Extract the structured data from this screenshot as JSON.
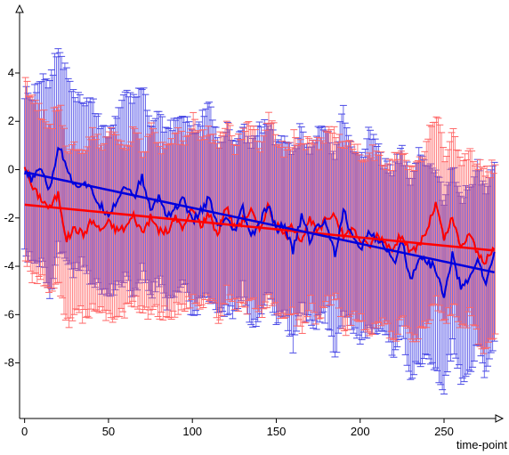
{
  "chart_data": {
    "type": "line",
    "title": "",
    "xlabel": "time-point",
    "ylabel": "",
    "xlim": [
      -3,
      285
    ],
    "ylim": [
      -10.3,
      6.8
    ],
    "grid": false,
    "legend": "none",
    "x_ticks": [
      0,
      50,
      100,
      150,
      200,
      250
    ],
    "x_tick_labels": [
      "0",
      "50",
      "100",
      "150",
      "200",
      "250"
    ],
    "y_ticks": [
      4,
      2,
      0,
      -2,
      -4,
      -6,
      -8
    ],
    "y_tick_labels": [
      "4",
      "2",
      "0",
      "-2",
      "-4",
      "-6",
      "-8"
    ],
    "colors": {
      "series_a": "#ff0000",
      "series_b": "#0000dd",
      "series_a_bars": "#ff6666",
      "series_b_bars": "#4a4ae6",
      "axis": "#000000"
    },
    "series": [
      {
        "color": "#ff0000",
        "x": [
          0,
          5,
          10,
          15,
          20,
          25,
          30,
          35,
          40,
          45,
          50,
          55,
          60,
          65,
          70,
          75,
          80,
          85,
          90,
          95,
          100,
          105,
          110,
          115,
          120,
          125,
          130,
          135,
          140,
          145,
          150,
          155,
          160,
          165,
          170,
          175,
          180,
          185,
          190,
          195,
          200,
          205,
          210,
          215,
          220,
          225,
          230,
          235,
          240,
          245,
          250,
          255,
          260,
          265,
          270,
          275,
          280
        ],
        "values": [
          0.2,
          -0.8,
          -1.2,
          -1.6,
          -1.0,
          -2.9,
          -2.4,
          -2.7,
          -2.1,
          -2.5,
          -2.2,
          -2.5,
          -2.4,
          -1.9,
          -2.6,
          -2.0,
          -2.5,
          -2.6,
          -2.0,
          -2.4,
          -1.6,
          -2.3,
          -1.8,
          -2.7,
          -1.5,
          -2.4,
          -2.1,
          -1.7,
          -2.5,
          -1.5,
          -2.3,
          -2.7,
          -2.3,
          -2.9,
          -2.1,
          -2.6,
          -2.0,
          -1.8,
          -2.8,
          -2.4,
          -2.9,
          -3.2,
          -2.7,
          -3.0,
          -3.3,
          -2.6,
          -3.5,
          -3.1,
          -2.5,
          -1.4,
          -2.9,
          -2.0,
          -3.3,
          -2.6,
          -3.5,
          -3.8,
          -3.3
        ],
        "errors": [
          3.6,
          3.7,
          3.4,
          3.5,
          3.8,
          3.6,
          3.5,
          3.3,
          3.7,
          3.4,
          3.9,
          3.5,
          3.3,
          3.6,
          3.2,
          3.8,
          3.4,
          3.5,
          3.7,
          3.3,
          3.9,
          3.6,
          3.4,
          3.7,
          3.5,
          3.3,
          3.8,
          3.6,
          3.4,
          3.7,
          3.5,
          3.3,
          3.6,
          3.8,
          3.4,
          3.7,
          3.5,
          3.3,
          3.9,
          3.6,
          3.4,
          3.8,
          3.5,
          3.3,
          3.7,
          3.5,
          3.4,
          3.6,
          3.8,
          3.9,
          3.4,
          3.6,
          3.5,
          3.3,
          3.7,
          3.6,
          3.5
        ],
        "trend": [
          [
            0,
            -1.45
          ],
          [
            280,
            -3.35
          ]
        ]
      },
      {
        "color": "#0000dd",
        "x": [
          0,
          5,
          10,
          15,
          20,
          25,
          30,
          35,
          40,
          45,
          50,
          55,
          60,
          65,
          70,
          75,
          80,
          85,
          90,
          95,
          100,
          105,
          110,
          115,
          120,
          125,
          130,
          135,
          140,
          145,
          150,
          155,
          160,
          165,
          170,
          175,
          180,
          185,
          190,
          195,
          200,
          205,
          210,
          215,
          220,
          225,
          230,
          235,
          240,
          245,
          250,
          255,
          260,
          265,
          270,
          275,
          280
        ],
        "values": [
          -0.2,
          -0.4,
          0.1,
          -0.9,
          1.0,
          0.2,
          -0.7,
          -0.5,
          -0.9,
          -1.5,
          -1.8,
          -1.3,
          -0.6,
          -1.2,
          -0.3,
          -1.7,
          -1.1,
          -1.9,
          -1.6,
          -1.2,
          -2.2,
          -1.7,
          -1.2,
          -2.4,
          -2.1,
          -2.6,
          -1.6,
          -2.8,
          -2.2,
          -1.5,
          -2.5,
          -2.3,
          -3.4,
          -1.9,
          -2.9,
          -2.3,
          -2.2,
          -3.5,
          -1.7,
          -2.7,
          -3.4,
          -2.5,
          -2.9,
          -3.3,
          -3.9,
          -2.9,
          -4.6,
          -3.6,
          -3.8,
          -4.1,
          -5.3,
          -3.5,
          -4.9,
          -4.6,
          -3.6,
          -4.8,
          -3.4
        ],
        "errors": [
          3.3,
          3.5,
          3.8,
          4.4,
          4.2,
          3.9,
          3.6,
          3.4,
          3.7,
          3.5,
          3.3,
          3.6,
          3.9,
          4.0,
          3.8,
          3.5,
          3.4,
          3.6,
          3.7,
          3.3,
          3.9,
          3.6,
          4.1,
          3.5,
          3.8,
          3.6,
          3.4,
          3.7,
          3.9,
          3.5,
          3.8,
          3.6,
          4.0,
          3.7,
          3.5,
          3.9,
          3.8,
          4.1,
          4.3,
          3.6,
          3.7,
          4.0,
          3.8,
          3.5,
          3.9,
          3.7,
          4.2,
          4.4,
          3.8,
          4.3,
          3.9,
          3.7,
          3.8,
          4.0,
          3.6,
          3.9,
          3.7
        ],
        "trend": [
          [
            0,
            -0.1
          ],
          [
            280,
            -4.25
          ]
        ]
      }
    ]
  }
}
